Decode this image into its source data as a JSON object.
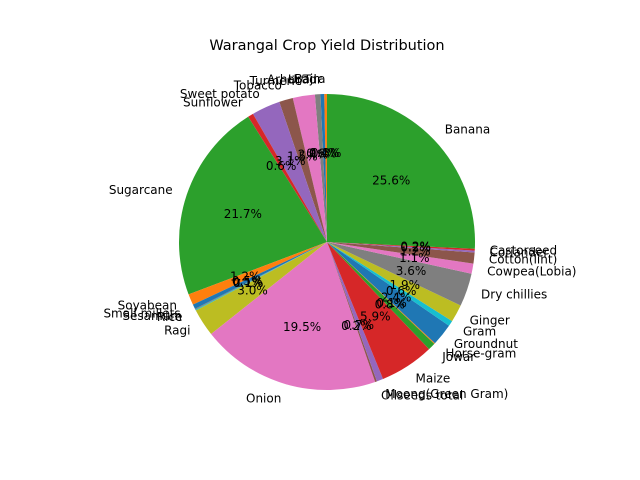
{
  "chart_data": {
    "type": "pie",
    "title": "Warangal Crop Yield Distribution",
    "start_angle_deg": 90,
    "direction": "counterclockwise",
    "slices": [
      {
        "label": "Bajra",
        "value": 0.3,
        "pct_label": "0.3%",
        "color": "#ff7f0e"
      },
      {
        "label": "Arhar/Tur",
        "value": 0.4,
        "pct_label": "0.4%",
        "color": "#1f77b4"
      },
      {
        "label": "Urad",
        "value": 0.6,
        "pct_label": "0.6%",
        "color": "#7f7f7f"
      },
      {
        "label": "Turmeric",
        "value": 2.4,
        "pct_label": "2.4%",
        "color": "#e377c2"
      },
      {
        "label": "Tobacco",
        "value": 1.5,
        "pct_label": "1.5%",
        "color": "#8c564b"
      },
      {
        "label": "Sweet potato",
        "value": 3.1,
        "pct_label": "3.1%",
        "color": "#9467bd"
      },
      {
        "label": "Sunflower",
        "value": 0.6,
        "pct_label": "0.6%",
        "color": "#d62728"
      },
      {
        "label": "Sugarcane",
        "value": 21.7,
        "pct_label": "21.7%",
        "color": "#2ca02c"
      },
      {
        "label": "Soyabean",
        "value": 1.2,
        "pct_label": "1.2%",
        "color": "#ff7f0e"
      },
      {
        "label": "Small millets",
        "value": 0.5,
        "pct_label": "0.5%",
        "color": "#1f77b4"
      },
      {
        "label": "Sesamum",
        "value": 0.1,
        "pct_label": "0.1%",
        "color": "#7f7f7f"
      },
      {
        "label": "Rice",
        "value": 0.1,
        "pct_label": "0.1%",
        "color": "#17becf"
      },
      {
        "label": "Ragi",
        "value": 3.0,
        "pct_label": "3.0%",
        "color": "#bcbd22"
      },
      {
        "label": "Onion",
        "value": 19.5,
        "pct_label": "19.5%",
        "color": "#e377c2"
      },
      {
        "label": "Oilseeds total",
        "value": 0.2,
        "pct_label": "0.2%",
        "color": "#8c564b"
      },
      {
        "label": "Moong(Green Gram)",
        "value": 0.7,
        "pct_label": "0.7%",
        "color": "#9467bd"
      },
      {
        "label": "Maize",
        "value": 5.9,
        "pct_label": "5.9%",
        "color": "#d62728"
      },
      {
        "label": "Jowar",
        "value": 0.8,
        "pct_label": "0.8%",
        "color": "#2ca02c"
      },
      {
        "label": "Horse-gram",
        "value": 0.1,
        "pct_label": "0.1%",
        "color": "#ff7f0e"
      },
      {
        "label": "Groundnut",
        "value": 2.4,
        "pct_label": "2.4%",
        "color": "#1f77b4"
      },
      {
        "label": "Gram",
        "value": 0.6,
        "pct_label": "0.6%",
        "color": "#17becf"
      },
      {
        "label": "Ginger",
        "value": 1.9,
        "pct_label": "1.9%",
        "color": "#bcbd22"
      },
      {
        "label": "Dry chillies",
        "value": 3.6,
        "pct_label": "3.6%",
        "color": "#7f7f7f"
      },
      {
        "label": "Cowpea(Lobia)",
        "value": 1.1,
        "pct_label": "1.1%",
        "color": "#e377c2"
      },
      {
        "label": "Cotton(lint)",
        "value": 1.2,
        "pct_label": "1.2%",
        "color": "#8c564b"
      },
      {
        "label": "Coriander",
        "value": 0.2,
        "pct_label": "0.2%",
        "color": "#9467bd"
      },
      {
        "label": "Castorseed",
        "value": 0.2,
        "pct_label": "0.2%",
        "color": "#d62728"
      },
      {
        "label": "Banana",
        "value": 25.6,
        "pct_label": "25.6%",
        "color": "#2ca02c"
      }
    ]
  }
}
